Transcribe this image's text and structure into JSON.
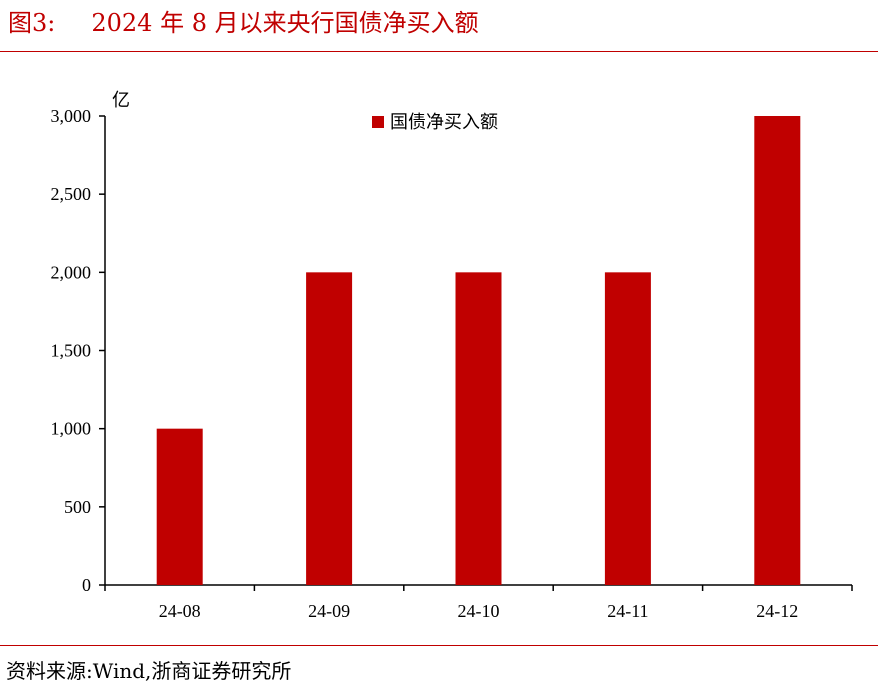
{
  "figure": {
    "label": "图3:",
    "title": "2024 年 8 月以来央行国债净买入额"
  },
  "source": {
    "text": "资料来源:Wind,浙商证券研究所"
  },
  "colors": {
    "accent": "#c00000",
    "bar": "#c00000",
    "axis": "#000000"
  },
  "chart_data": {
    "type": "bar",
    "title": "",
    "xlabel": "",
    "ylabel": "",
    "unit_label": "亿",
    "categories": [
      "24-08",
      "24-09",
      "24-10",
      "24-11",
      "24-12"
    ],
    "series": [
      {
        "name": "国债净买入额",
        "values": [
          1000,
          2000,
          2000,
          2000,
          3000
        ]
      }
    ],
    "yticks": [
      "0",
      "500",
      "1,000",
      "1,500",
      "2,000",
      "2,500",
      "3,000"
    ],
    "ylim": [
      0,
      3000
    ],
    "grid": false,
    "legend_position": "top-center"
  }
}
